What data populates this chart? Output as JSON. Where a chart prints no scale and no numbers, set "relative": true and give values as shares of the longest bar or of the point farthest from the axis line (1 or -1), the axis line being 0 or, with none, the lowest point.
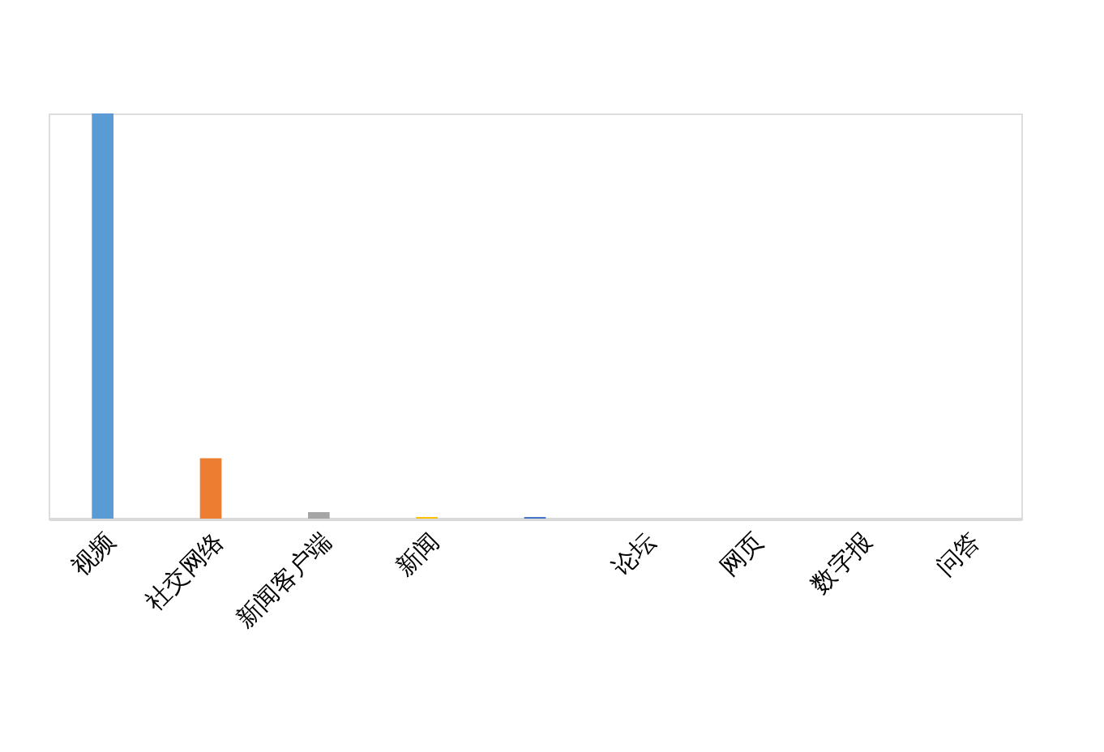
{
  "chart_data": {
    "type": "bar",
    "relative": true,
    "categories": [
      "视频",
      "社交网络",
      "新闻客户端",
      "新闻",
      null,
      "论坛",
      "网页",
      "数字报",
      "问答"
    ],
    "values": [
      1,
      0.149,
      0.016,
      0.004,
      0.004,
      0,
      0,
      0,
      0
    ],
    "colors": [
      "#5b9bd5",
      "#ed7d31",
      "#a5a5a5",
      "#ffc000",
      "#4472c4",
      "#70ad47",
      "#255e91",
      "#9e480e",
      "#636363"
    ],
    "grid": false,
    "legend": false
  }
}
